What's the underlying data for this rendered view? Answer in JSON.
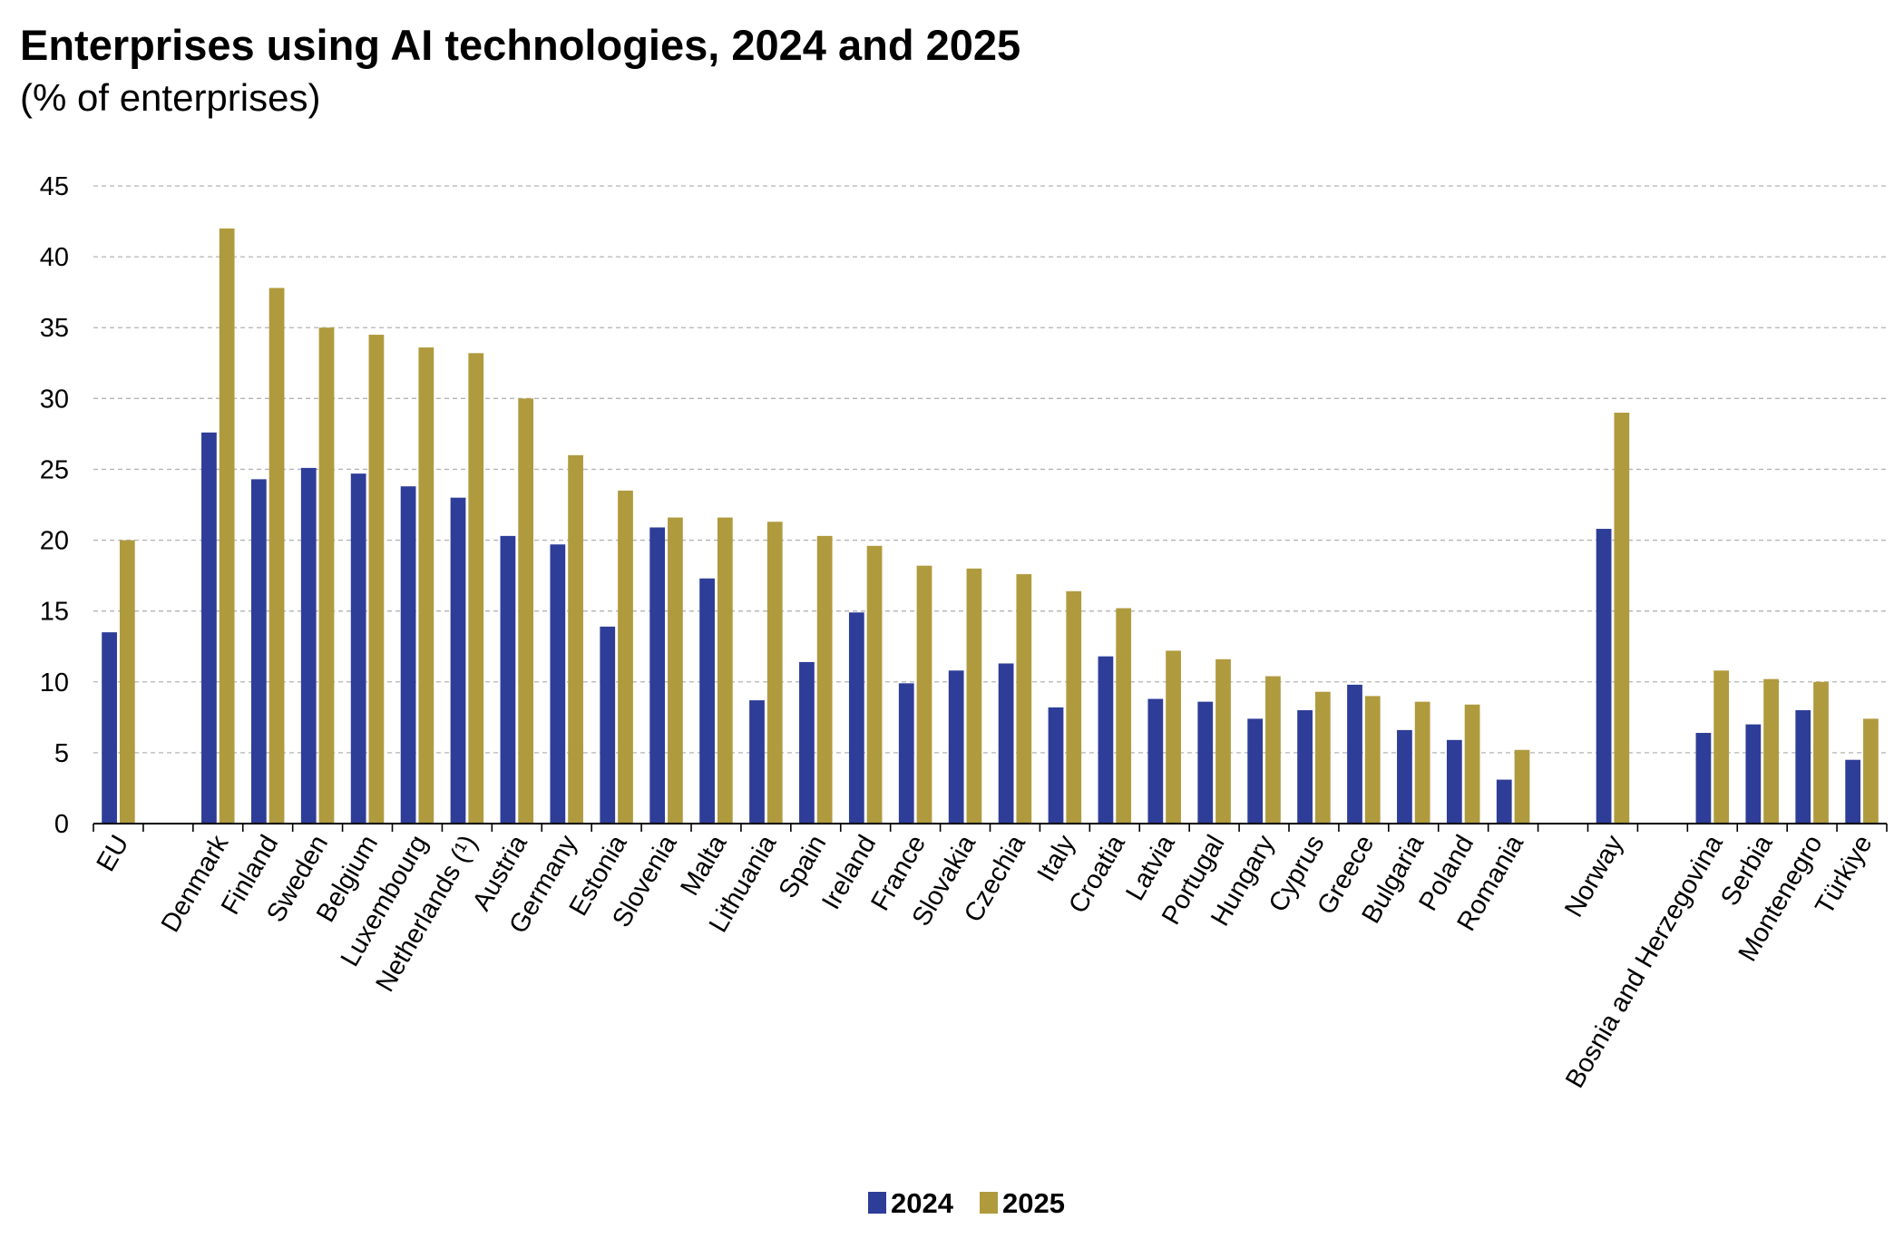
{
  "chart_data": {
    "type": "bar",
    "title": "Enterprises using AI technologies, 2024 and 2025",
    "subtitle": "(% of enterprises)",
    "xlabel": "",
    "ylabel": "",
    "ylim": [
      0,
      45
    ],
    "yticks": [
      0,
      5,
      10,
      15,
      20,
      25,
      30,
      35,
      40,
      45
    ],
    "grid": true,
    "legend_position": "bottom-center",
    "categories": [
      "EU",
      "",
      "Denmark",
      "Finland",
      "Sweden",
      "Belgium",
      "Luxembourg",
      "Netherlands (¹)",
      "Austria",
      "Germany",
      "Estonia",
      "Slovenia",
      "Malta",
      "Lithuania",
      "Spain",
      "Ireland",
      "France",
      "Slovakia",
      "Czechia",
      "Italy",
      "Croatia",
      "Latvia",
      "Portugal",
      "Hungary",
      "Cyprus",
      "Greece",
      "Bulgaria",
      "Poland",
      "Romania",
      "",
      "Norway",
      "",
      "Bosnia and Herzegovina",
      "Serbia",
      "Montenegro",
      "Türkiye"
    ],
    "series": [
      {
        "name": "2024",
        "color": "#2e3d98",
        "values": [
          13.5,
          null,
          27.6,
          24.3,
          25.1,
          24.7,
          23.8,
          23.0,
          20.3,
          19.7,
          13.9,
          20.9,
          17.3,
          8.7,
          11.4,
          14.9,
          9.9,
          10.8,
          11.3,
          8.2,
          11.8,
          8.8,
          8.6,
          7.4,
          8.0,
          9.8,
          6.6,
          5.9,
          3.1,
          null,
          20.8,
          null,
          6.4,
          7.0,
          8.0,
          4.5
        ]
      },
      {
        "name": "2025",
        "color": "#b09a3e",
        "values": [
          20.0,
          null,
          42.0,
          37.8,
          35.0,
          34.5,
          33.6,
          33.2,
          30.0,
          26.0,
          23.5,
          21.6,
          21.6,
          21.3,
          20.3,
          19.6,
          18.2,
          18.0,
          17.6,
          16.4,
          15.2,
          12.2,
          11.6,
          10.4,
          9.3,
          9.0,
          8.6,
          8.4,
          5.2,
          null,
          29.0,
          null,
          10.8,
          10.2,
          10.0,
          7.4
        ]
      }
    ]
  }
}
